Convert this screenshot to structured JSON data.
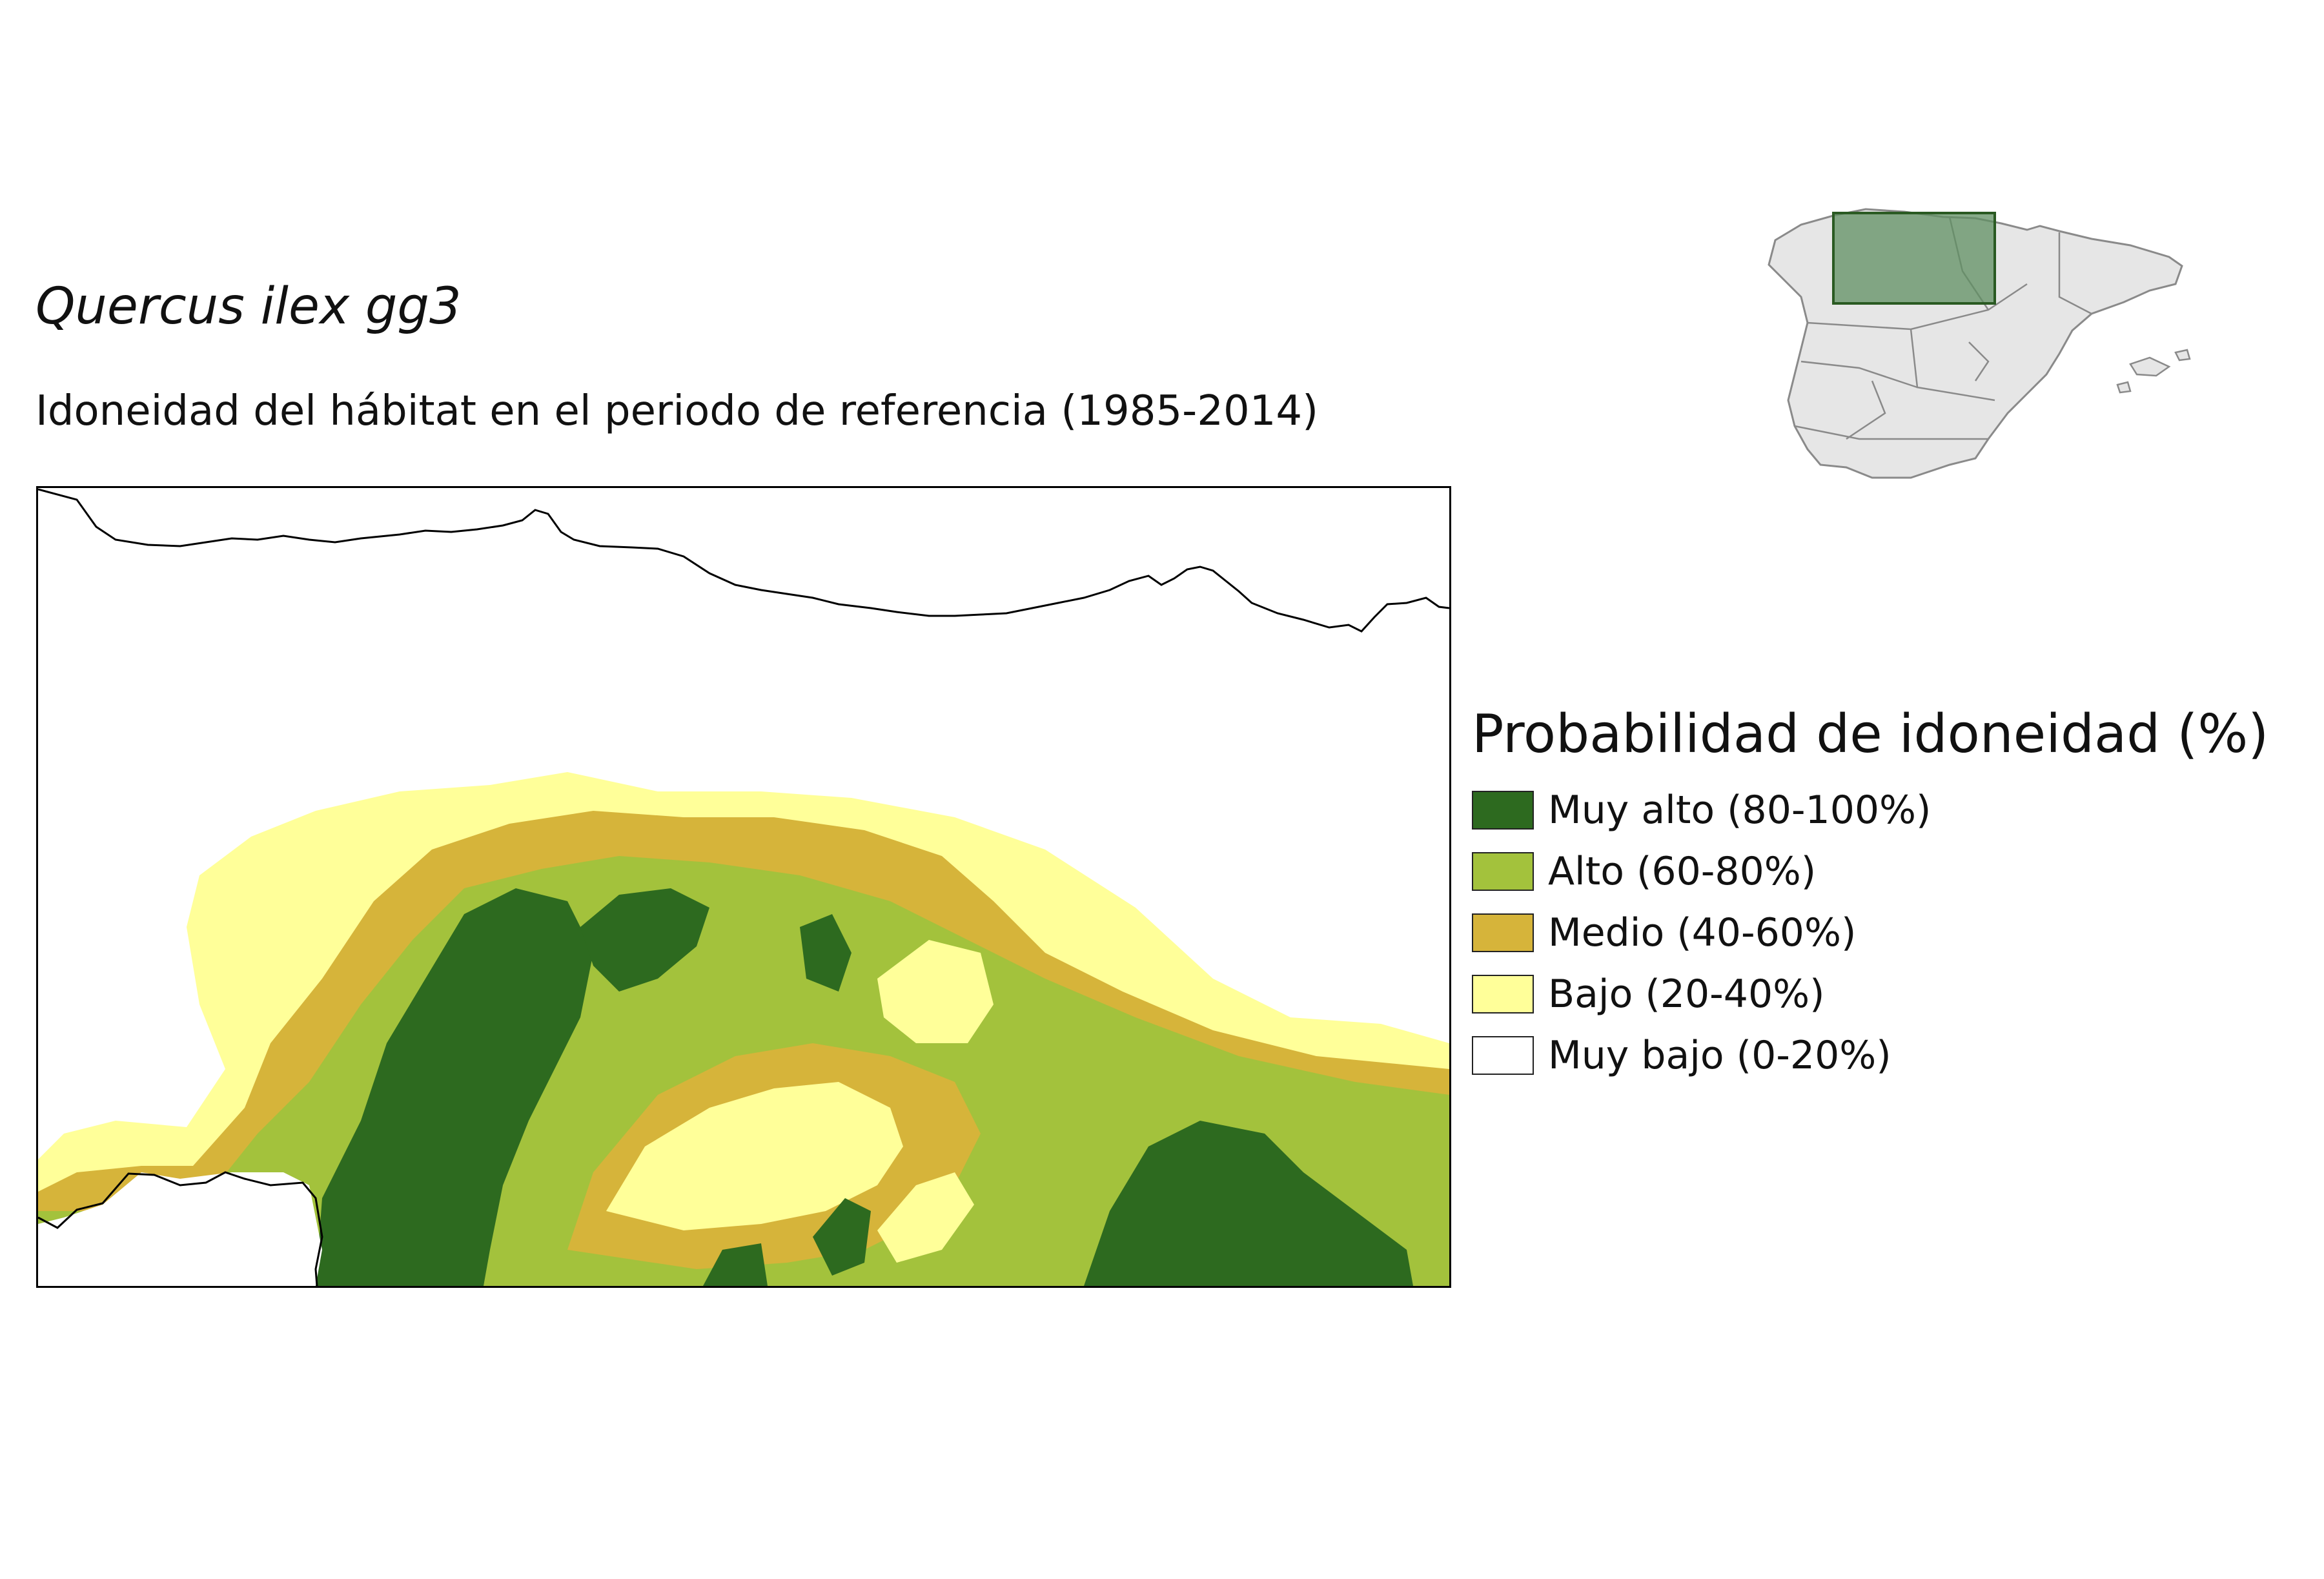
{
  "header": {
    "title": "Quercus ilex gg3",
    "subtitle": "Idoneidad del hábitat en el periodo de referencia (1985-2014)"
  },
  "legend": {
    "title": "Probabilidad de idoneidad (%)",
    "items": [
      {
        "label": "Muy alto (80-100%)",
        "color": "#2d6a1f"
      },
      {
        "label": "Alto (60-80%)",
        "color": "#a3c23c"
      },
      {
        "label": "Medio (40-60%)",
        "color": "#d6b43a"
      },
      {
        "label": "Bajo (20-40%)",
        "color": "#ffff99"
      },
      {
        "label": "Muy bajo (0-20%)",
        "color": "#ffffff"
      }
    ]
  },
  "colors": {
    "coastline": "#000000",
    "inset_fill": "#e6e6e6",
    "inset_border": "#8a8a8a",
    "inset_highlight": "#5f8f62",
    "inset_highlight_border": "#2a5a22"
  }
}
